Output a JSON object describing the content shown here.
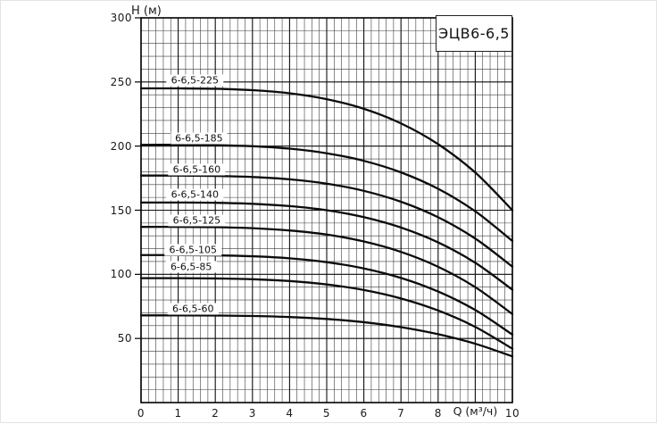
{
  "chart_data": {
    "type": "line",
    "title_box": "ЭЦВ6-6,5",
    "y_axis_label": "Н (м)",
    "x_axis_label": "Q (м³/ч)",
    "x_range": [
      0,
      10
    ],
    "y_range": [
      0,
      300
    ],
    "x_major_tick_labels": [
      0,
      1,
      2,
      3,
      4,
      5,
      6,
      7,
      8,
      10
    ],
    "x_axis_label_at": 9,
    "y_major_tick_labels": [
      50,
      100,
      150,
      200,
      250,
      300
    ],
    "x_minor_step": 0.2,
    "y_minor_step": 10,
    "grid": true,
    "legend_position": "none",
    "curve_color": "#0b0b0b",
    "x": [
      0,
      1,
      2,
      3,
      4,
      5,
      6,
      7,
      8,
      9,
      10
    ],
    "series": [
      {
        "name": "6-6,5-225",
        "values": [
          245,
          245,
          244.7,
          243.6,
          241.2,
          236.6,
          229.1,
          217.7,
          201.5,
          179.4,
          150
        ],
        "label_pos": [
          1.45,
          251
        ]
      },
      {
        "name": "6-6,5-185",
        "values": [
          201,
          201,
          200.7,
          199.9,
          198.0,
          194.4,
          188.5,
          179.5,
          166.7,
          149.2,
          126
        ],
        "label_pos": [
          1.56,
          206
        ]
      },
      {
        "name": "6-6,5-160",
        "values": [
          177,
          177,
          176.7,
          175.9,
          174.1,
          170.7,
          165.1,
          156.6,
          144.5,
          127.9,
          106
        ],
        "label_pos": [
          1.5,
          182
        ]
      },
      {
        "name": "6-6,5-140",
        "values": [
          156,
          156,
          155.8,
          155.0,
          153.2,
          150.0,
          144.6,
          136.5,
          124.9,
          109.0,
          88
        ],
        "label_pos": [
          1.45,
          162
        ]
      },
      {
        "name": "6-6,5-125",
        "values": [
          137,
          137,
          136.8,
          136.0,
          134.2,
          131.0,
          125.6,
          117.5,
          105.9,
          90.0,
          69
        ],
        "label_pos": [
          1.5,
          142
        ]
      },
      {
        "name": "6-6,5-105",
        "values": [
          115,
          115,
          114.8,
          114.1,
          112.5,
          109.5,
          104.6,
          97.2,
          86.6,
          72.2,
          53
        ],
        "label_pos": [
          1.4,
          119
        ]
      },
      {
        "name": "6-6,5-85",
        "values": [
          97,
          97,
          96.8,
          96.2,
          94.8,
          92.1,
          87.8,
          81.2,
          71.8,
          59.0,
          42
        ],
        "label_pos": [
          1.35,
          106
        ]
      },
      {
        "name": "6-6,5-60",
        "values": [
          68,
          68,
          67.9,
          67.5,
          66.7,
          65.2,
          62.7,
          58.8,
          53.3,
          45.9,
          36
        ],
        "label_pos": [
          1.4,
          73
        ]
      }
    ]
  },
  "colors": {
    "grid_minor": "#3d3d3d",
    "grid_major": "#111111",
    "plot_border": "#000000",
    "background": "#ffffff"
  }
}
